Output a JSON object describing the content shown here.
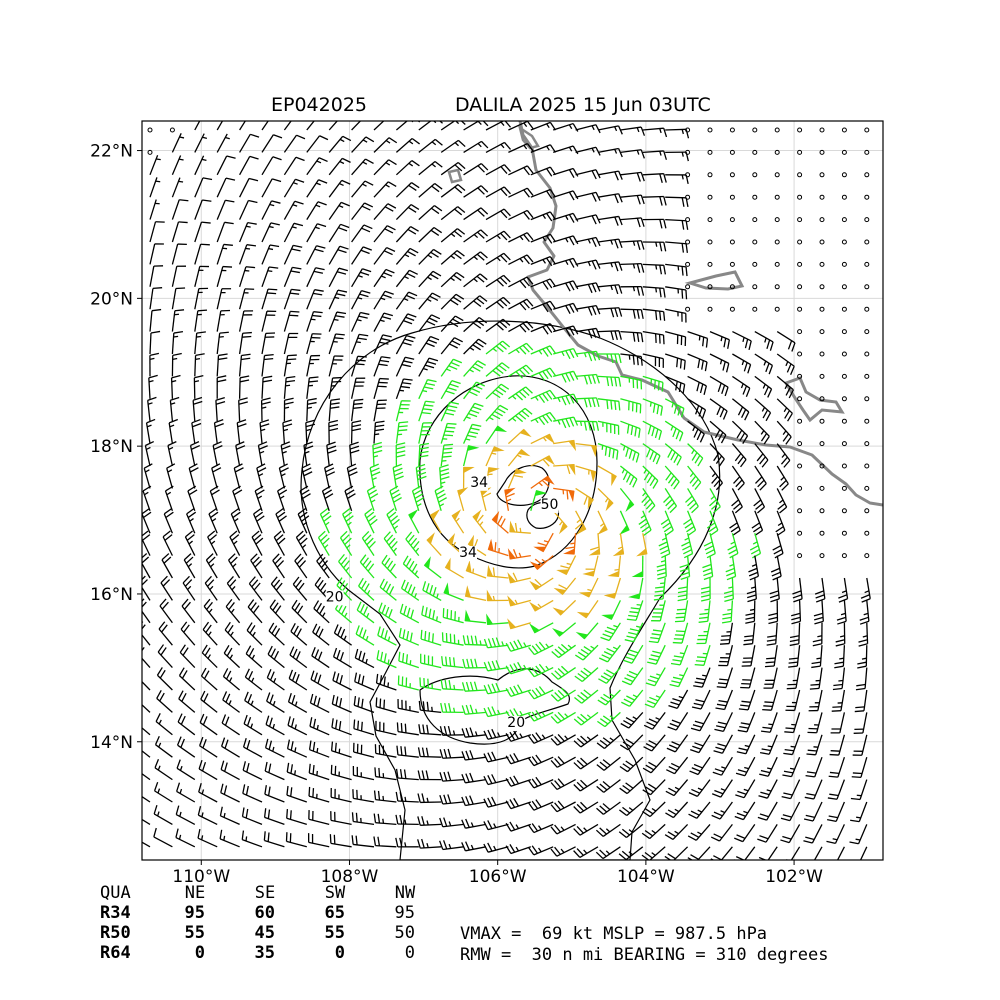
{
  "chart_data": {
    "type": "wind-barb map",
    "title_left": "EP042025",
    "title_right": "DALILA 2025 15 Jun 03UTC",
    "x_ticks": [
      {
        "lon": -110,
        "label": "110°W"
      },
      {
        "lon": -108,
        "label": "108°W"
      },
      {
        "lon": -106,
        "label": "106°W"
      },
      {
        "lon": -104,
        "label": "104°W"
      },
      {
        "lon": -102,
        "label": "102°W"
      }
    ],
    "y_ticks": [
      {
        "lat": 22,
        "label": "22°N"
      },
      {
        "lat": 20,
        "label": "20°N"
      },
      {
        "lat": 18,
        "label": "18°N"
      },
      {
        "lat": 16,
        "label": "16°N"
      },
      {
        "lat": 14,
        "label": "14°N"
      }
    ],
    "lon_range": [
      -110.8,
      -100.8
    ],
    "lat_range": [
      12.4,
      22.4
    ],
    "grid": true,
    "storm_center": {
      "lon": -105.45,
      "lat": 17.05
    },
    "vmax_kt": 69,
    "mslp_hpa": 987.5,
    "rmw_nmi": 30,
    "bearing_deg": 310,
    "wind_color_thresholds": [
      {
        "min_kt": 0,
        "color": "#000000"
      },
      {
        "min_kt": 34,
        "color": "#22e61c"
      },
      {
        "min_kt": 50,
        "color": "#e6b11f"
      },
      {
        "min_kt": 64,
        "color": "#f06a0a"
      }
    ],
    "contour_labels": [
      {
        "text": "34",
        "lon": -106.25,
        "lat": 17.45
      },
      {
        "text": "50",
        "lon": -105.3,
        "lat": 17.15
      },
      {
        "text": "34",
        "lon": -106.4,
        "lat": 16.5
      },
      {
        "text": "20",
        "lon": -108.2,
        "lat": 15.9
      },
      {
        "text": "20",
        "lon": -105.75,
        "lat": 14.2
      }
    ],
    "radii_table": {
      "header": [
        "QUA",
        "NE",
        "SE",
        "SW",
        "NW"
      ],
      "rows": [
        {
          "label": "R34",
          "values": [
            "95",
            "60",
            "65",
            "95"
          ]
        },
        {
          "label": "R50",
          "values": [
            "55",
            "45",
            "55",
            "50"
          ]
        },
        {
          "label": "R64",
          "values": [
            "0",
            "35",
            "0",
            "0"
          ]
        }
      ]
    },
    "stats_line1": "VMAX =  69 kt MSLP = 987.5 hPa",
    "stats_line2": "RMW =  30 n mi BEARING = 310 degrees",
    "colors": {
      "coastline": "#888888",
      "gridline": "#d9d9d9",
      "contour": "#000000"
    }
  }
}
